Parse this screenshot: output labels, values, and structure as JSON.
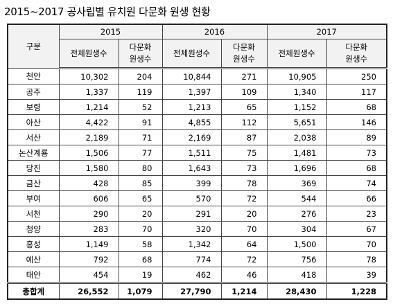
{
  "title": "2015~2017 공사립별 유치원 다문화 원생 현황",
  "table": {
    "corner": "구분",
    "years": [
      "2015",
      "2016",
      "2017"
    ],
    "subheaders": [
      "전체원생수",
      "다문화\n원생수",
      "전체원생수",
      "다문화\n원생수",
      "전체원생수",
      "다문화\n원생수"
    ],
    "rows": [
      [
        "천안",
        "10,302",
        "204",
        "10,844",
        "271",
        "10,905",
        "250"
      ],
      [
        "공주",
        "1,337",
        "119",
        "1,397",
        "109",
        "1,340",
        "117"
      ],
      [
        "보령",
        "1,214",
        "52",
        "1,213",
        "65",
        "1,152",
        "68"
      ],
      [
        "아산",
        "4,422",
        "91",
        "4,855",
        "112",
        "5,651",
        "146"
      ],
      [
        "서산",
        "2,189",
        "71",
        "2,169",
        "87",
        "2,038",
        "89"
      ],
      [
        "논산계룡",
        "1,506",
        "77",
        "1,511",
        "75",
        "1,481",
        "73"
      ],
      [
        "당진",
        "1,580",
        "80",
        "1,643",
        "73",
        "1,696",
        "68"
      ],
      [
        "금산",
        "428",
        "85",
        "399",
        "78",
        "369",
        "74"
      ],
      [
        "부여",
        "606",
        "65",
        "570",
        "72",
        "544",
        "66"
      ],
      [
        "서천",
        "290",
        "20",
        "291",
        "20",
        "276",
        "23"
      ],
      [
        "청양",
        "283",
        "70",
        "320",
        "70",
        "304",
        "67"
      ],
      [
        "홍성",
        "1,149",
        "58",
        "1,342",
        "64",
        "1,500",
        "70"
      ],
      [
        "예산",
        "792",
        "68",
        "774",
        "72",
        "756",
        "78"
      ],
      [
        "태안",
        "454",
        "19",
        "462",
        "46",
        "418",
        "39"
      ],
      [
        "총합계",
        "26,552",
        "1,079",
        "27,790",
        "1,214",
        "28,430",
        "1,228"
      ]
    ]
  }
}
